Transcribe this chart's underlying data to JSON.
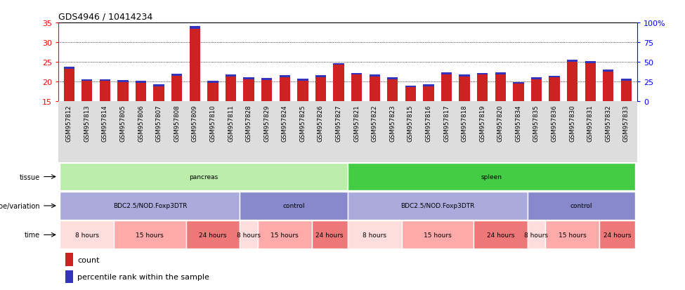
{
  "title": "GDS4946 / 10414234",
  "samples": [
    "GSM957812",
    "GSM957813",
    "GSM957814",
    "GSM957805",
    "GSM957806",
    "GSM957807",
    "GSM957808",
    "GSM957809",
    "GSM957810",
    "GSM957811",
    "GSM957828",
    "GSM957829",
    "GSM957824",
    "GSM957825",
    "GSM957826",
    "GSM957827",
    "GSM957821",
    "GSM957822",
    "GSM957823",
    "GSM957815",
    "GSM957816",
    "GSM957817",
    "GSM957818",
    "GSM957819",
    "GSM957820",
    "GSM957834",
    "GSM957835",
    "GSM957836",
    "GSM957830",
    "GSM957831",
    "GSM957832",
    "GSM957833"
  ],
  "count_values": [
    23.2,
    20.1,
    20.1,
    19.8,
    19.6,
    18.7,
    21.4,
    33.5,
    19.6,
    21.2,
    20.6,
    20.3,
    21.1,
    20.2,
    21.1,
    24.2,
    21.7,
    21.2,
    20.5,
    18.5,
    18.8,
    21.8,
    21.3,
    21.7,
    21.8,
    19.4,
    20.6,
    21.0,
    25.0,
    24.6,
    22.5,
    20.2
  ],
  "percentile_values": [
    0.6,
    0.5,
    0.5,
    0.5,
    0.5,
    0.5,
    0.5,
    0.7,
    0.5,
    0.5,
    0.5,
    0.5,
    0.5,
    0.5,
    0.5,
    0.5,
    0.5,
    0.5,
    0.5,
    0.5,
    0.5,
    0.5,
    0.5,
    0.5,
    0.5,
    0.5,
    0.5,
    0.5,
    0.6,
    0.6,
    0.5,
    0.5
  ],
  "bar_bottom": 15.0,
  "ylim_left": [
    15,
    35
  ],
  "ylim_right": [
    0,
    100
  ],
  "yticks_left": [
    15,
    20,
    25,
    30,
    35
  ],
  "yticks_right": [
    0,
    25,
    50,
    75,
    100
  ],
  "ytick_labels_right": [
    "0",
    "25",
    "50",
    "75",
    "100%"
  ],
  "grid_values": [
    20,
    25,
    30
  ],
  "bar_color_red": "#cc2222",
  "bar_color_blue": "#3333bb",
  "tissue_groups": [
    {
      "label": "pancreas",
      "start": 0,
      "end": 15,
      "color": "#bbeeaa"
    },
    {
      "label": "spleen",
      "start": 16,
      "end": 31,
      "color": "#44cc44"
    }
  ],
  "genotype_groups": [
    {
      "label": "BDC2.5/NOD.Foxp3DTR",
      "start": 0,
      "end": 9,
      "color": "#aaaadd"
    },
    {
      "label": "control",
      "start": 10,
      "end": 15,
      "color": "#8888cc"
    },
    {
      "label": "BDC2.5/NOD.Foxp3DTR",
      "start": 16,
      "end": 25,
      "color": "#aaaadd"
    },
    {
      "label": "control",
      "start": 26,
      "end": 31,
      "color": "#8888cc"
    }
  ],
  "time_groups": [
    {
      "label": "8 hours",
      "start": 0,
      "end": 2,
      "color": "#ffdddd"
    },
    {
      "label": "15 hours",
      "start": 3,
      "end": 6,
      "color": "#ffaaaa"
    },
    {
      "label": "24 hours",
      "start": 7,
      "end": 9,
      "color": "#ee7777"
    },
    {
      "label": "8 hours",
      "start": 10,
      "end": 10,
      "color": "#ffdddd"
    },
    {
      "label": "15 hours",
      "start": 11,
      "end": 13,
      "color": "#ffaaaa"
    },
    {
      "label": "24 hours",
      "start": 14,
      "end": 15,
      "color": "#ee7777"
    },
    {
      "label": "8 hours",
      "start": 16,
      "end": 18,
      "color": "#ffdddd"
    },
    {
      "label": "15 hours",
      "start": 19,
      "end": 22,
      "color": "#ffaaaa"
    },
    {
      "label": "24 hours",
      "start": 23,
      "end": 25,
      "color": "#ee7777"
    },
    {
      "label": "8 hours",
      "start": 26,
      "end": 26,
      "color": "#ffdddd"
    },
    {
      "label": "15 hours",
      "start": 27,
      "end": 29,
      "color": "#ffaaaa"
    },
    {
      "label": "24 hours",
      "start": 30,
      "end": 31,
      "color": "#ee7777"
    }
  ],
  "row_labels": [
    "tissue",
    "genotype/variation",
    "time"
  ],
  "legend_count": "count",
  "legend_percentile": "percentile rank within the sample",
  "bg_color": "#ffffff",
  "xtick_bg": "#dddddd"
}
